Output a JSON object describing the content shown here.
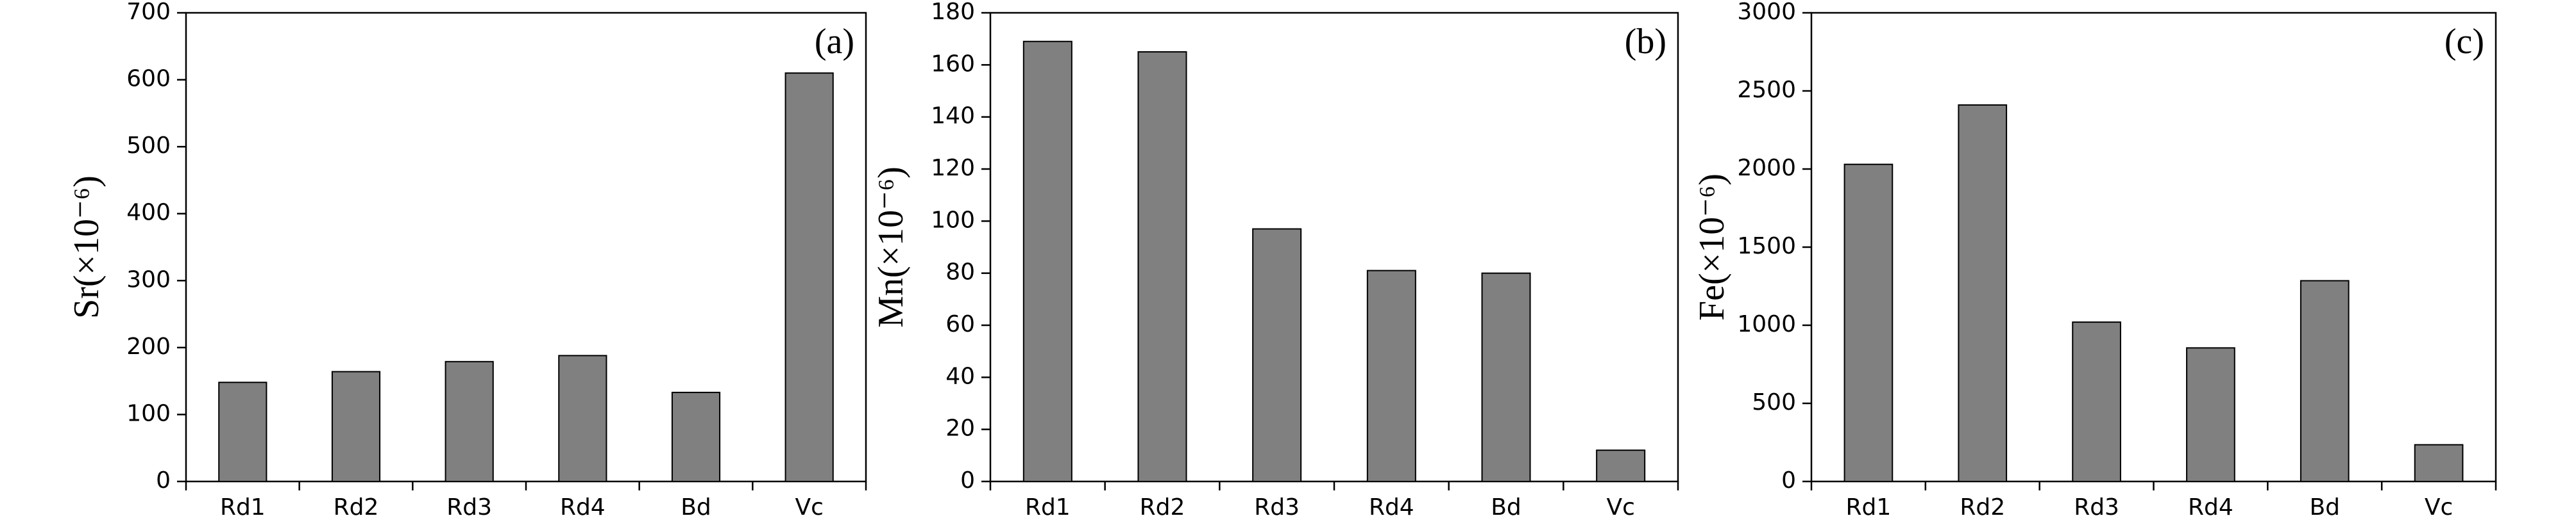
{
  "chart_data": [
    {
      "type": "bar",
      "panel_label": "(a)",
      "ylabel": "Sr(×10⁻⁶)",
      "categories": [
        "Rd1",
        "Rd2",
        "Rd3",
        "Rd4",
        "Bd",
        "Vc"
      ],
      "values": [
        148,
        164,
        179,
        188,
        133,
        610
      ],
      "color": "#808080",
      "ylim": [
        0,
        700
      ],
      "yticks": [
        0,
        100,
        200,
        300,
        400,
        500,
        600,
        700
      ]
    },
    {
      "type": "bar",
      "panel_label": "(b)",
      "ylabel": "Mn(×10⁻⁶)",
      "categories": [
        "Rd1",
        "Rd2",
        "Rd3",
        "Rd4",
        "Bd",
        "Vc"
      ],
      "values": [
        169,
        165,
        97,
        81,
        80,
        12
      ],
      "color": "#808080",
      "ylim": [
        0,
        180
      ],
      "yticks": [
        0,
        20,
        40,
        60,
        80,
        100,
        120,
        140,
        160,
        180
      ]
    },
    {
      "type": "bar",
      "panel_label": "(c)",
      "ylabel": "Fe(×10⁻⁶)",
      "categories": [
        "Rd1",
        "Rd2",
        "Rd3",
        "Rd4",
        "Bd",
        "Vc"
      ],
      "values": [
        2030,
        2410,
        1020,
        855,
        1285,
        235
      ],
      "color": "#808080",
      "ylim": [
        0,
        3000
      ],
      "yticks": [
        0,
        500,
        1000,
        1500,
        2000,
        2500,
        3000
      ]
    }
  ]
}
